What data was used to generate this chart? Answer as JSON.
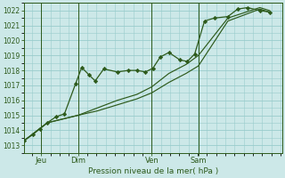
{
  "bg_color": "#cce8e8",
  "grid_color": "#99cccc",
  "line_color": "#2d5a1b",
  "marker_color": "#2d5a1b",
  "xlabel_text": "Pression niveau de la mer( hPa )",
  "ylim": [
    1012.5,
    1022.5
  ],
  "yticks": [
    1013,
    1014,
    1015,
    1016,
    1017,
    1018,
    1019,
    1020,
    1021,
    1022
  ],
  "xtick_labels": [
    "Jeu",
    "Dim",
    "Ven",
    "Sam"
  ],
  "xtick_positions": [
    0.07,
    0.22,
    0.52,
    0.71
  ],
  "xlim": [
    0.0,
    1.05
  ],
  "series1_x": [
    0.0,
    0.035,
    0.065,
    0.095,
    0.13,
    0.165,
    0.21,
    0.235,
    0.265,
    0.29,
    0.325,
    0.38,
    0.425,
    0.46,
    0.495,
    0.525,
    0.555,
    0.59,
    0.635,
    0.665,
    0.695,
    0.735,
    0.775,
    0.83,
    0.87,
    0.91,
    0.96,
    1.0
  ],
  "series1_y": [
    1013.3,
    1013.7,
    1014.1,
    1014.5,
    1014.9,
    1015.1,
    1017.1,
    1018.2,
    1017.7,
    1017.3,
    1018.1,
    1017.9,
    1018.0,
    1018.0,
    1017.9,
    1018.15,
    1018.9,
    1019.2,
    1018.7,
    1018.6,
    1019.1,
    1021.3,
    1021.5,
    1021.6,
    1022.1,
    1022.2,
    1022.0,
    1021.9
  ],
  "series2_x": [
    0.0,
    0.095,
    0.22,
    0.3,
    0.38,
    0.46,
    0.52,
    0.59,
    0.66,
    0.71,
    0.83,
    0.96,
    1.0
  ],
  "series2_y": [
    1013.3,
    1014.5,
    1015.0,
    1015.3,
    1015.7,
    1016.1,
    1016.5,
    1017.2,
    1017.8,
    1018.3,
    1021.3,
    1022.1,
    1021.9
  ],
  "series3_x": [
    0.0,
    0.095,
    0.22,
    0.3,
    0.38,
    0.46,
    0.52,
    0.59,
    0.66,
    0.71,
    0.83,
    0.96,
    1.0
  ],
  "series3_y": [
    1013.3,
    1014.5,
    1015.0,
    1015.5,
    1016.0,
    1016.4,
    1016.9,
    1017.8,
    1018.4,
    1019.0,
    1021.5,
    1022.2,
    1022.0
  ],
  "vline_positions": [
    0.07,
    0.22,
    0.52,
    0.71
  ]
}
